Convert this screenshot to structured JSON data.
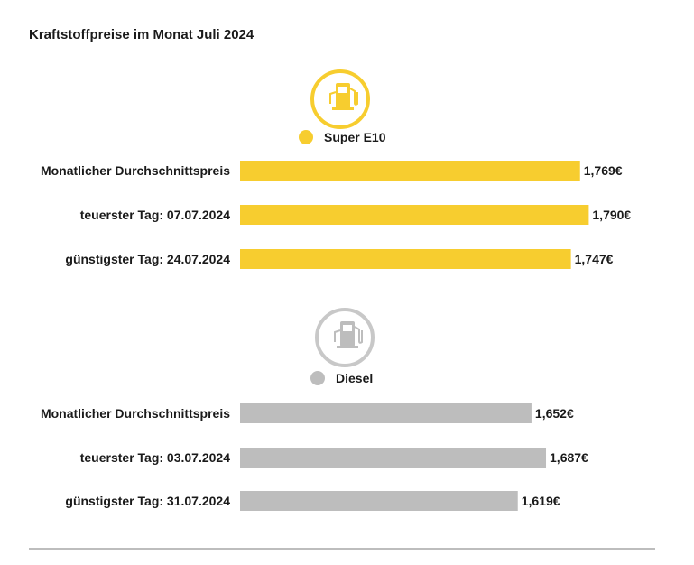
{
  "title": "Kraftstoffpreise im Monat Juli 2024",
  "chart_data": [
    {
      "type": "bar",
      "orientation": "horizontal",
      "series_name": "Super E10",
      "color": "#f7cd2f",
      "icon": "fuel-pump-icon",
      "categories": [
        "Monatlicher Durchschnittspreis",
        "teuerster Tag: 07.07.2024",
        "günstigster Tag: 24.07.2024"
      ],
      "values": [
        1.769,
        1.79,
        1.747
      ],
      "value_labels": [
        "1,769€",
        "1,790€",
        "1,747€"
      ]
    },
    {
      "type": "bar",
      "orientation": "horizontal",
      "series_name": "Diesel",
      "color": "#bdbdbd",
      "icon": "fuel-pump-icon",
      "categories": [
        "Monatlicher Durchschnittspreis",
        "teuerster Tag: 03.07.2024",
        "günstigster Tag: 31.07.2024"
      ],
      "values": [
        1.652,
        1.687,
        1.619
      ],
      "value_labels": [
        "1,652€",
        "1,687€",
        "1,619€"
      ]
    }
  ]
}
